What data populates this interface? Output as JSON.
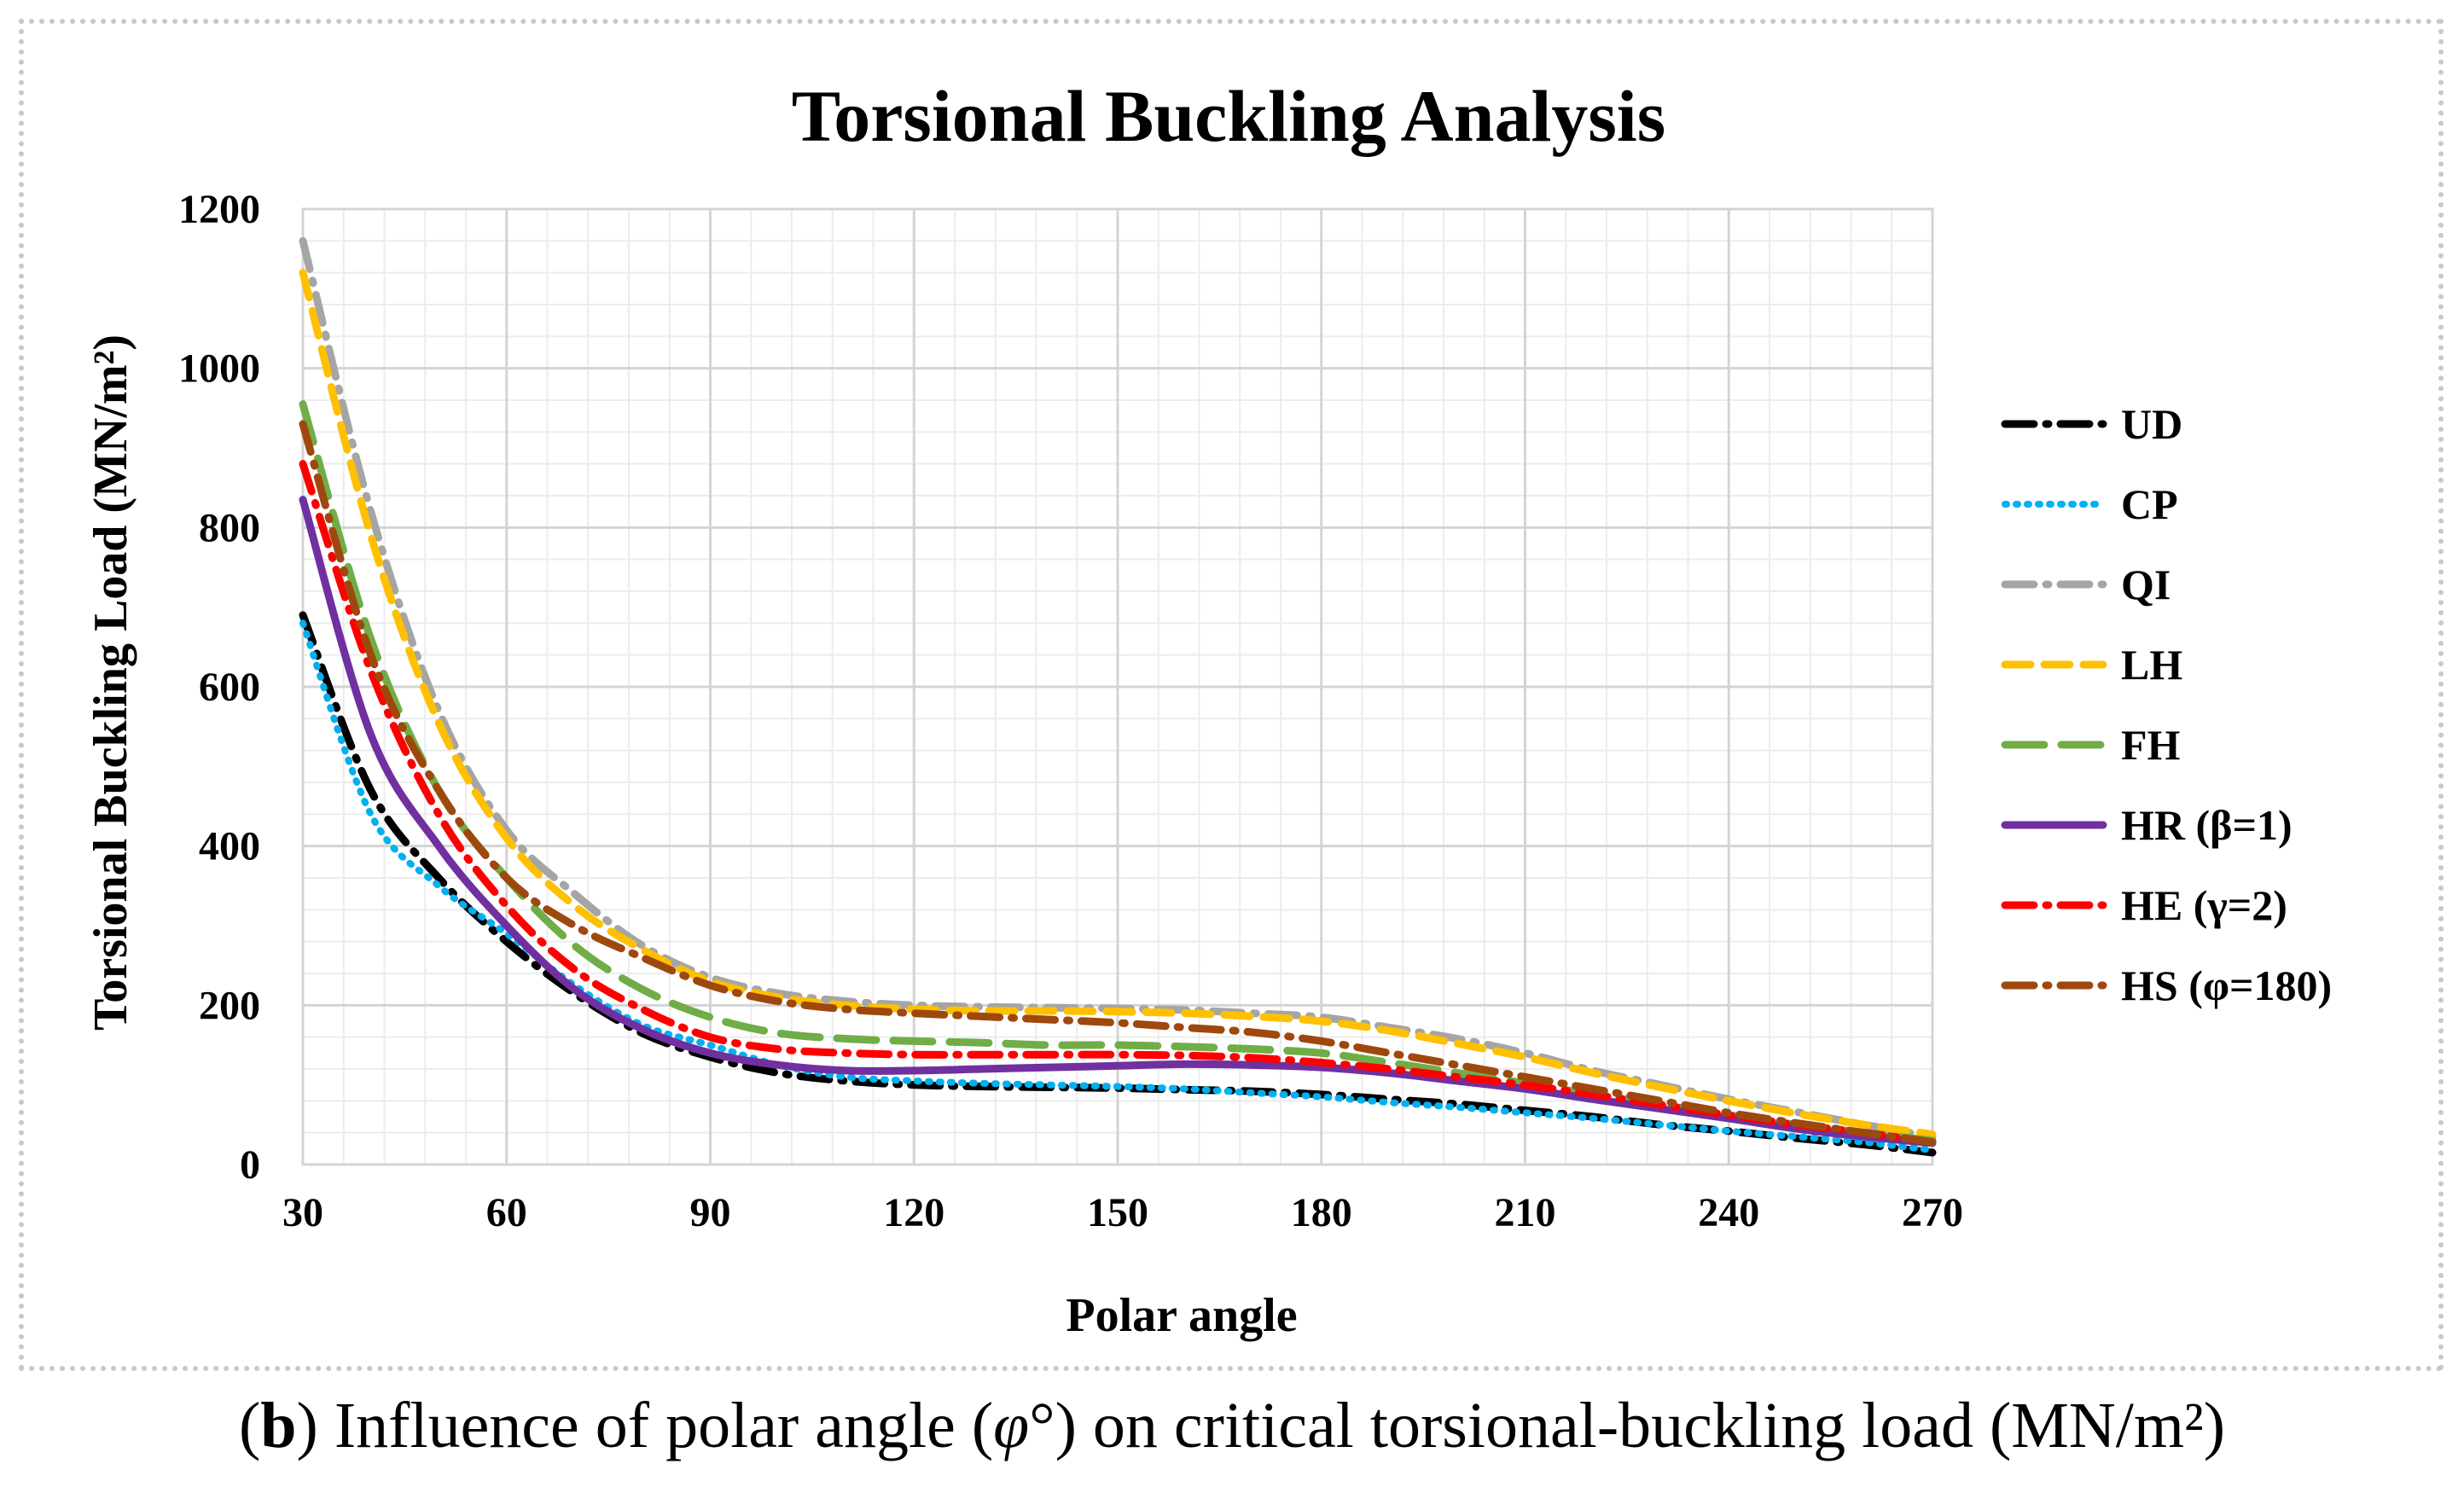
{
  "chart_data": {
    "type": "line",
    "title": "Torsional Buckling Analysis",
    "xlabel": "Polar angle",
    "ylabel": "Torsional Buckling Load (MN/m²)",
    "xlim": [
      30,
      270
    ],
    "ylim": [
      0,
      1200
    ],
    "x_ticks": [
      30,
      60,
      90,
      120,
      150,
      180,
      210,
      240,
      270
    ],
    "y_ticks": [
      0,
      200,
      400,
      600,
      800,
      1000,
      1200
    ],
    "grid": true,
    "legend_position": "right",
    "x": [
      30,
      40,
      50,
      60,
      70,
      80,
      90,
      100,
      110,
      120,
      130,
      140,
      150,
      160,
      170,
      180,
      190,
      200,
      210,
      220,
      230,
      240,
      250,
      260,
      270
    ],
    "series": [
      {
        "name": "UD",
        "color": "#000000",
        "style": "dash-dot",
        "values": [
          690,
          470,
          360,
          280,
          215,
          165,
          135,
          115,
          105,
          100,
          98,
          97,
          96,
          94,
          92,
          88,
          82,
          76,
          68,
          60,
          50,
          42,
          33,
          25,
          15
        ]
      },
      {
        "name": "CP",
        "color": "#00B0F0",
        "style": "dot",
        "values": [
          680,
          440,
          350,
          290,
          225,
          175,
          150,
          125,
          110,
          105,
          102,
          100,
          98,
          95,
          90,
          85,
          78,
          72,
          65,
          58,
          50,
          42,
          35,
          28,
          18
        ]
      },
      {
        "name": "QI",
        "color": "#A5A5A5",
        "style": "dash-dot",
        "values": [
          1160,
          820,
          570,
          420,
          340,
          275,
          235,
          215,
          205,
          200,
          198,
          197,
          196,
          194,
          190,
          185,
          172,
          158,
          140,
          118,
          100,
          82,
          66,
          50,
          35
        ]
      },
      {
        "name": "LH",
        "color": "#FFC000",
        "style": "dash",
        "values": [
          1120,
          790,
          555,
          410,
          325,
          270,
          230,
          210,
          200,
          195,
          193,
          193,
          192,
          190,
          186,
          180,
          168,
          152,
          135,
          115,
          97,
          80,
          64,
          50,
          38
        ]
      },
      {
        "name": "FH",
        "color": "#70AD47",
        "style": "long-dash",
        "values": [
          955,
          660,
          470,
          360,
          275,
          220,
          185,
          165,
          158,
          155,
          153,
          150,
          150,
          148,
          145,
          140,
          128,
          115,
          102,
          88,
          75,
          62,
          50,
          40,
          30
        ]
      },
      {
        "name": "HR (β=1)",
        "color": "#7030A0",
        "style": "solid",
        "values": [
          835,
          540,
          400,
          300,
          220,
          170,
          140,
          125,
          118,
          118,
          120,
          122,
          124,
          126,
          125,
          122,
          115,
          105,
          95,
          82,
          70,
          58,
          45,
          35,
          27
        ]
      },
      {
        "name": "HE (γ=2)",
        "color": "#FF0000",
        "style": "dash-dot",
        "values": [
          880,
          620,
          440,
          325,
          245,
          195,
          160,
          145,
          140,
          138,
          138,
          138,
          138,
          137,
          134,
          128,
          120,
          110,
          100,
          88,
          75,
          62,
          50,
          40,
          28
        ]
      },
      {
        "name": "HS (φ=180)",
        "color": "#9E480E",
        "style": "dash-dot",
        "values": [
          930,
          640,
          470,
          360,
          300,
          260,
          225,
          205,
          195,
          190,
          186,
          182,
          178,
          172,
          166,
          155,
          140,
          125,
          110,
          95,
          80,
          65,
          52,
          40,
          28
        ]
      }
    ]
  },
  "caption": {
    "label": "b",
    "open_paren": "(",
    "close_paren": ")",
    "text_before": " Influence of polar angle (",
    "symbol": "φ",
    "degree": "°",
    "text_after": ") on critical torsional-buckling load (MN/m²)"
  }
}
